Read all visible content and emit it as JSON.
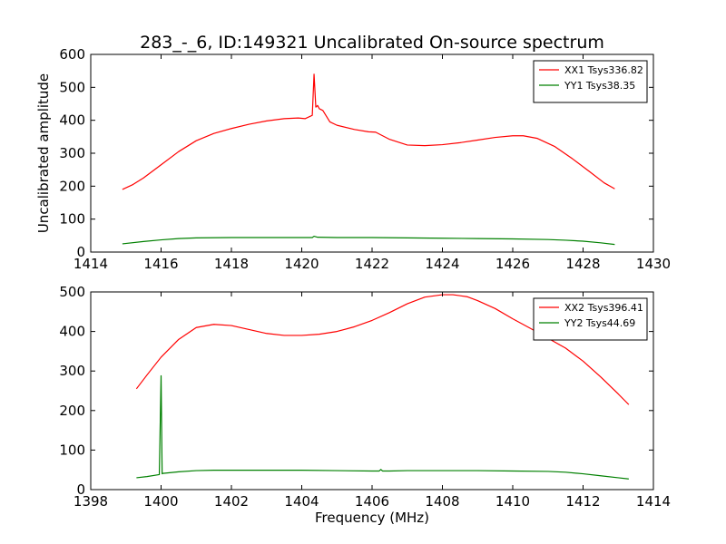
{
  "title": "283_-_6, ID:149321 Uncalibrated On-source spectrum",
  "colors": {
    "xx": "#ff0000",
    "yy": "#008000"
  },
  "chart_data": [
    {
      "type": "line",
      "xlabel": "",
      "ylabel": "Uncalibrated amplitude",
      "xlim": [
        1414,
        1430
      ],
      "ylim": [
        0,
        600
      ],
      "xticks": [
        1414,
        1416,
        1418,
        1420,
        1422,
        1424,
        1426,
        1428,
        1430
      ],
      "yticks": [
        0,
        100,
        200,
        300,
        400,
        500,
        600
      ],
      "legend_position": "top-right",
      "series": [
        {
          "name": "XX1 Tsys336.82",
          "color": "#ff0000",
          "x": [
            1414.9,
            1415.2,
            1415.5,
            1416.0,
            1416.5,
            1417.0,
            1417.5,
            1418.0,
            1418.5,
            1419.0,
            1419.5,
            1419.9,
            1420.1,
            1420.3,
            1420.35,
            1420.4,
            1420.45,
            1420.5,
            1420.6,
            1420.8,
            1421.0,
            1421.5,
            1421.9,
            1422.1,
            1422.5,
            1423.0,
            1423.5,
            1424.0,
            1424.5,
            1425.0,
            1425.5,
            1426.0,
            1426.3,
            1426.7,
            1427.2,
            1427.7,
            1428.2,
            1428.6,
            1428.9
          ],
          "y": [
            190,
            205,
            225,
            265,
            305,
            338,
            360,
            375,
            388,
            398,
            405,
            407,
            405,
            415,
            540,
            440,
            445,
            435,
            430,
            395,
            385,
            372,
            365,
            364,
            342,
            325,
            323,
            326,
            332,
            340,
            348,
            353,
            353,
            345,
            320,
            283,
            243,
            210,
            192
          ]
        },
        {
          "name": "YY1 Tsys38.35",
          "color": "#008000",
          "x": [
            1414.9,
            1415.5,
            1416.0,
            1416.5,
            1417.0,
            1418.0,
            1419.0,
            1420.0,
            1420.3,
            1420.35,
            1420.45,
            1421.0,
            1422.0,
            1423.0,
            1424.0,
            1425.0,
            1426.0,
            1427.0,
            1427.5,
            1428.0,
            1428.5,
            1428.9
          ],
          "y": [
            25,
            32,
            37,
            41,
            43,
            44,
            44,
            44,
            44,
            48,
            45,
            44,
            44,
            43,
            42,
            41,
            40,
            38,
            36,
            33,
            28,
            23
          ]
        }
      ]
    },
    {
      "type": "line",
      "xlabel": "Frequency (MHz)",
      "ylabel": "",
      "xlim": [
        1398,
        1414
      ],
      "ylim": [
        0,
        500
      ],
      "xticks": [
        1398,
        1400,
        1402,
        1404,
        1406,
        1408,
        1410,
        1412,
        1414
      ],
      "yticks": [
        0,
        100,
        200,
        300,
        400,
        500
      ],
      "legend_position": "top-right",
      "series": [
        {
          "name": "XX2 Tsys396.41",
          "color": "#ff0000",
          "x": [
            1399.3,
            1399.6,
            1400.0,
            1400.5,
            1401.0,
            1401.5,
            1402.0,
            1402.5,
            1403.0,
            1403.5,
            1404.0,
            1404.5,
            1405.0,
            1405.5,
            1406.0,
            1406.5,
            1407.0,
            1407.5,
            1408.0,
            1408.3,
            1408.7,
            1409.0,
            1409.5,
            1410.0,
            1410.5,
            1411.0,
            1411.5,
            1412.0,
            1412.5,
            1413.0,
            1413.3
          ],
          "y": [
            255,
            290,
            335,
            380,
            410,
            418,
            415,
            405,
            395,
            390,
            390,
            393,
            400,
            412,
            428,
            448,
            470,
            487,
            493,
            493,
            488,
            478,
            458,
            432,
            408,
            383,
            358,
            325,
            285,
            242,
            215
          ]
        },
        {
          "name": "YY2 Tsys44.69",
          "color": "#008000",
          "x": [
            1399.3,
            1399.6,
            1399.95,
            1400.0,
            1400.03,
            1400.05,
            1400.5,
            1401.0,
            1401.5,
            1402.0,
            1403.0,
            1404.0,
            1405.0,
            1406.0,
            1406.2,
            1406.25,
            1406.3,
            1406.5,
            1407.0,
            1408.0,
            1409.0,
            1410.0,
            1411.0,
            1411.5,
            1412.0,
            1412.5,
            1413.0,
            1413.3
          ],
          "y": [
            30,
            33,
            38,
            288,
            40,
            41,
            45,
            48,
            49,
            49,
            49,
            49,
            48,
            47,
            47,
            51,
            47,
            47,
            48,
            48,
            48,
            47,
            46,
            44,
            40,
            35,
            30,
            27
          ]
        }
      ]
    }
  ]
}
